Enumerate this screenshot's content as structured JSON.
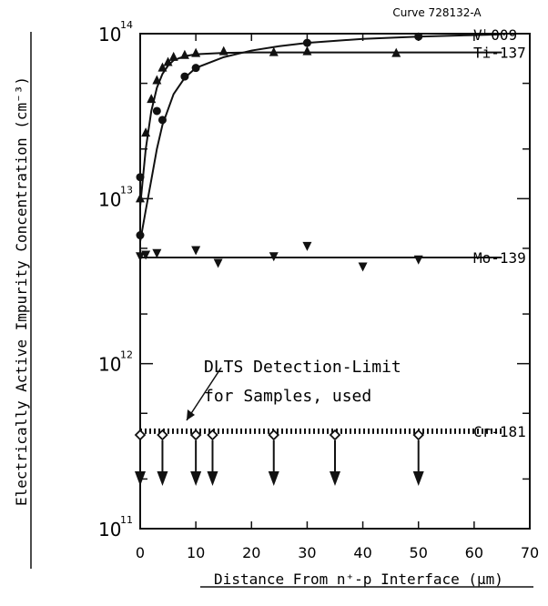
{
  "chart_data": {
    "type": "scatter",
    "curve_label": "Curve 728132-A",
    "xlabel": "Distance From n⁺-p Interface (μm)",
    "ylabel": "Electrically Active Impurity Concentration (cm⁻³)",
    "xlim": [
      0,
      70
    ],
    "ylim": [
      100000000000,
      100000000000000
    ],
    "y_scale": "log",
    "grid": false,
    "legend": "none",
    "x_ticks": [
      0,
      10,
      20,
      30,
      40,
      50,
      60,
      70
    ],
    "x_tick_labels": [
      "0",
      "10",
      "20",
      "30",
      "40",
      "50",
      "60",
      "70"
    ],
    "y_ticks": [
      100000000000,
      1000000000000,
      10000000000000,
      100000000000000
    ],
    "y_tick_labels": [
      {
        "base": "10",
        "exp": "11"
      },
      {
        "base": "10",
        "exp": "12"
      },
      {
        "base": "10",
        "exp": "13"
      },
      {
        "base": "10",
        "exp": "14"
      }
    ],
    "series": [
      {
        "name": "Vᴸ009",
        "marker": "circle",
        "x": [
          0,
          0,
          3,
          4,
          8,
          10,
          30,
          50
        ],
        "y": [
          13500000000000,
          6000000000000,
          34000000000000,
          30000000000000,
          55000000000000,
          62000000000000,
          88000000000000,
          96000000000000
        ],
        "curve": {
          "x": [
            0,
            1,
            2,
            3,
            4,
            6,
            8,
            10,
            15,
            20,
            25,
            30,
            40,
            50,
            60,
            65
          ],
          "y": [
            5500000000000,
            8500000000000,
            13000000000000,
            20000000000000,
            28000000000000,
            43000000000000,
            54000000000000,
            62000000000000,
            72000000000000,
            79000000000000,
            84000000000000,
            88000000000000,
            93000000000000,
            96000000000000,
            98000000000000,
            99000000000000
          ]
        }
      },
      {
        "name": "Ti-137",
        "marker": "triangle-up",
        "x": [
          0,
          1,
          2,
          3,
          4,
          5,
          6,
          8,
          10,
          15,
          24,
          30,
          46
        ],
        "y": [
          10000000000000,
          25000000000000,
          40000000000000,
          52000000000000,
          62000000000000,
          67000000000000,
          72000000000000,
          74000000000000,
          76000000000000,
          78000000000000,
          77000000000000,
          78000000000000,
          76000000000000
        ],
        "curve": {
          "x": [
            0,
            1,
            2,
            3,
            4,
            5,
            6,
            8,
            10,
            15,
            20,
            30,
            40,
            50,
            65
          ],
          "y": [
            9000000000000,
            20000000000000,
            34000000000000,
            47000000000000,
            57000000000000,
            64000000000000,
            69000000000000,
            73000000000000,
            75000000000000,
            76500000000000,
            77000000000000,
            77000000000000,
            77000000000000,
            77000000000000,
            77000000000000
          ]
        }
      },
      {
        "name": "Mo-139",
        "marker": "triangle-down",
        "x": [
          0,
          1,
          3,
          10,
          14,
          24,
          30,
          40,
          50
        ],
        "y": [
          4500000000000,
          4600000000000,
          4700000000000,
          4900000000000,
          4100000000000,
          4500000000000,
          5200000000000,
          3900000000000,
          4300000000000
        ],
        "curve": {
          "x": [
            0,
            65
          ],
          "y": [
            4400000000000,
            4400000000000
          ]
        }
      },
      {
        "name": "Cr-181",
        "marker": "open-diamond-upper-limit",
        "x": [
          0,
          4,
          10,
          13,
          24,
          35,
          50
        ],
        "y": [
          370000000000,
          370000000000,
          370000000000,
          370000000000,
          370000000000,
          370000000000,
          370000000000
        ],
        "curve": {
          "x": [
            0,
            65
          ],
          "y": [
            390000000000,
            390000000000
          ]
        }
      }
    ],
    "detection_limit": {
      "y": 390000000000,
      "style": "dashed",
      "annotation_lines": [
        "DLTS Detection-Limit",
        "for Samples, used"
      ]
    }
  }
}
